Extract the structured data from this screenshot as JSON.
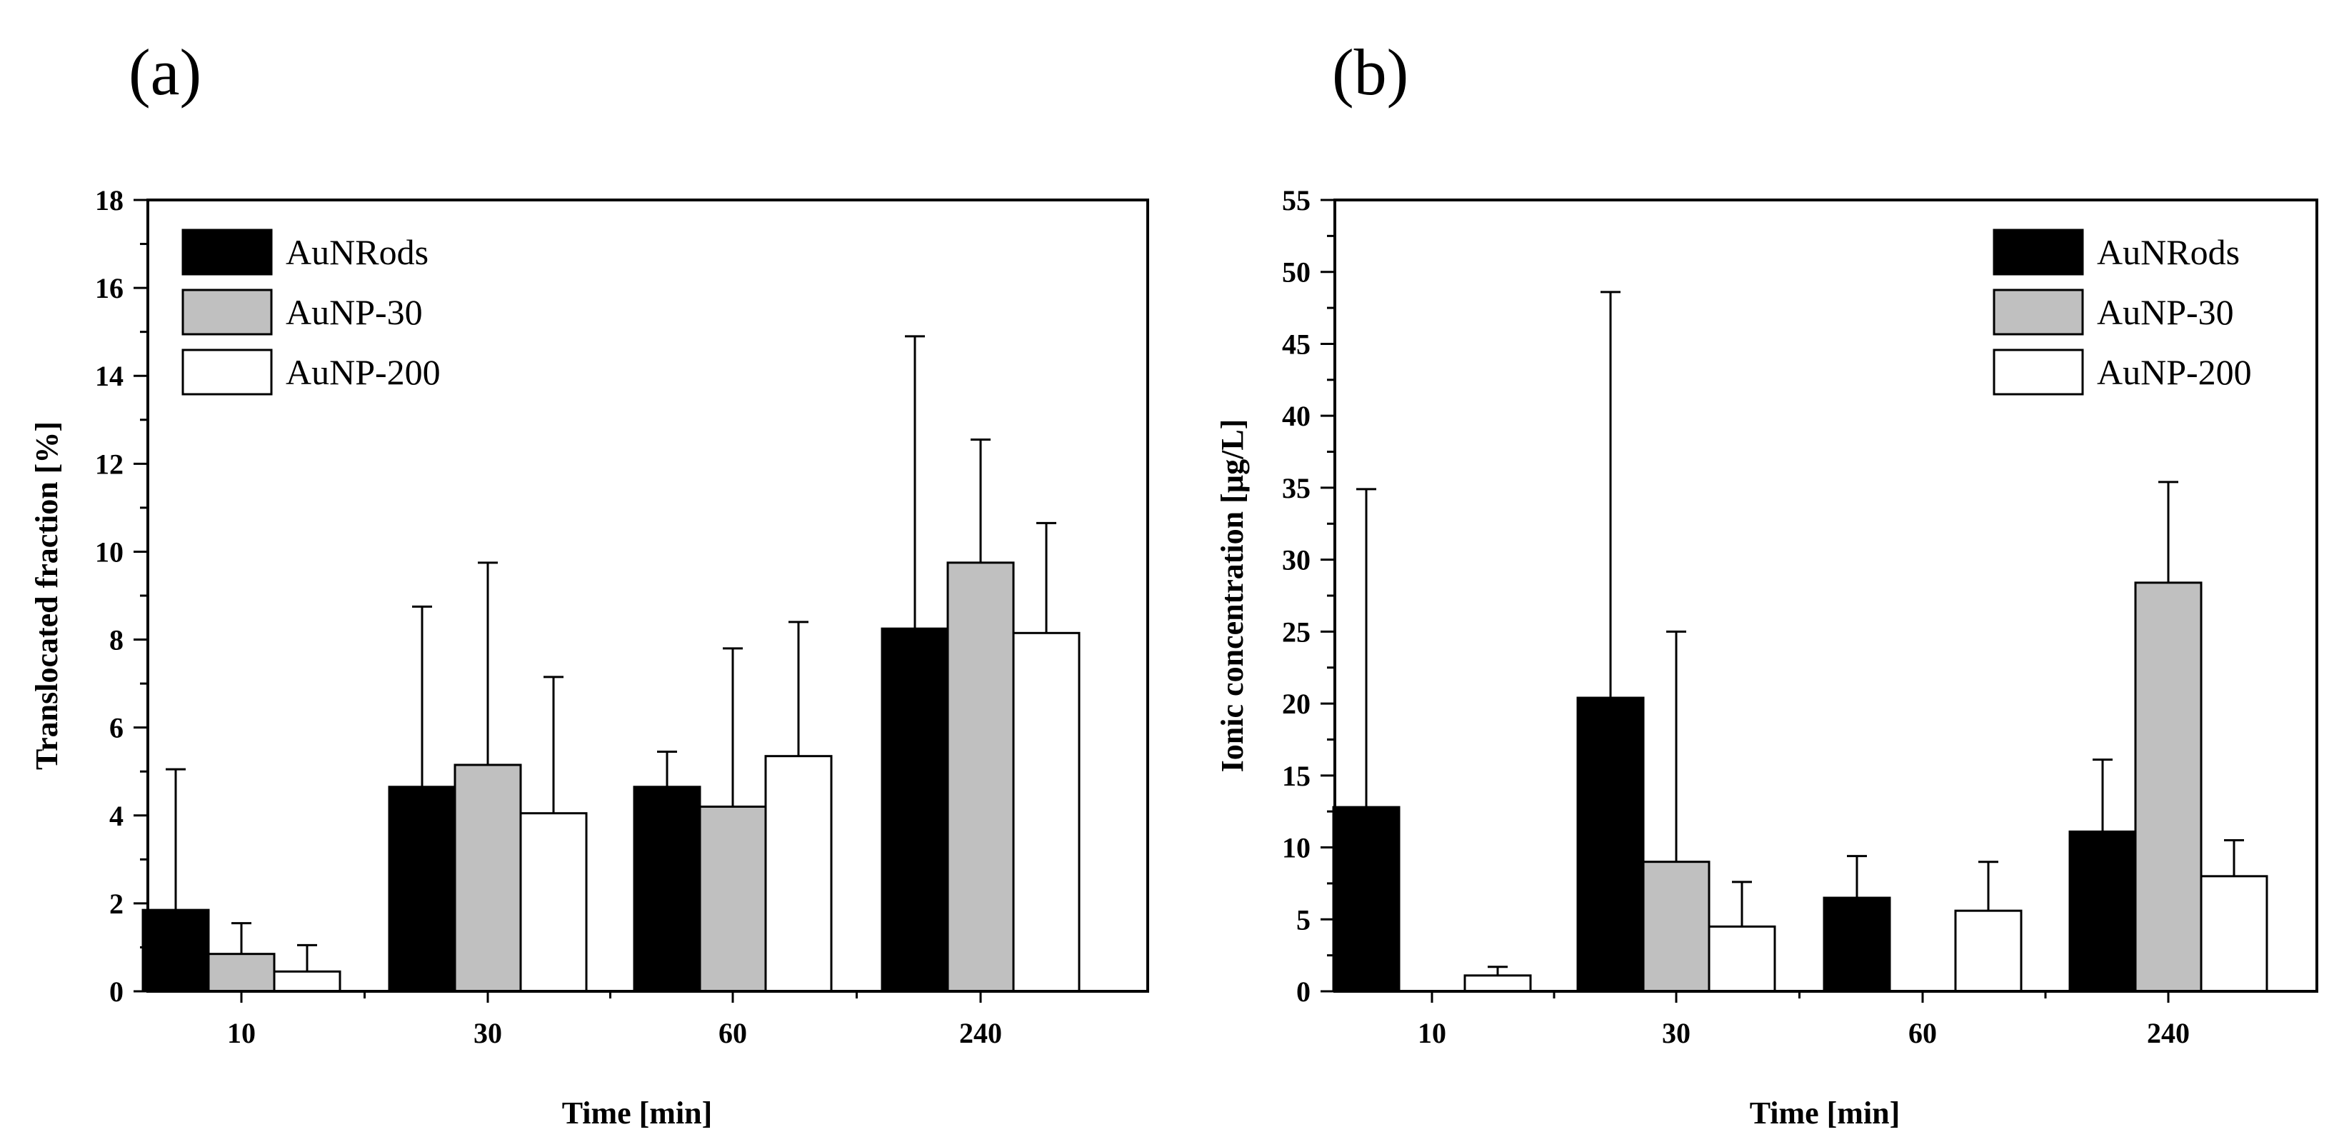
{
  "chart_data": [
    {
      "type": "bar",
      "panel_label": "(a)",
      "title": "",
      "xlabel": "Time  [min]",
      "ylabel": "Translocated fraction [%]",
      "categories": [
        "10",
        "30",
        "60",
        "240"
      ],
      "ylim": [
        0,
        18
      ],
      "yticks": [
        0,
        2,
        4,
        6,
        8,
        10,
        12,
        14,
        16,
        18
      ],
      "ytick_labels": [
        "0",
        "2",
        "4",
        "6",
        "8",
        "10",
        "12",
        "14",
        "16",
        "18"
      ],
      "legend_position": "top-left",
      "series": [
        {
          "name": "AuNRods",
          "color": "#000000",
          "values": [
            1.85,
            4.65,
            4.65,
            8.25
          ],
          "errors": [
            3.2,
            4.1,
            0.8,
            6.65
          ]
        },
        {
          "name": "AuNP-30",
          "color": "#c0c0c0",
          "values": [
            0.85,
            5.15,
            4.2,
            9.75
          ],
          "errors": [
            0.7,
            4.6,
            3.6,
            2.8
          ]
        },
        {
          "name": "AuNP-200",
          "color": "#ffffff",
          "values": [
            0.45,
            4.05,
            5.35,
            8.15
          ],
          "errors": [
            0.6,
            3.1,
            3.05,
            2.5
          ]
        }
      ]
    },
    {
      "type": "bar",
      "panel_label": "(b)",
      "title": "",
      "xlabel": "Time [min]",
      "ylabel": "Ionic concentration [µg/L]",
      "categories": [
        "10",
        "30",
        "60",
        "240"
      ],
      "ylim": [
        0,
        55
      ],
      "yticks": [
        0,
        5,
        10,
        15,
        20,
        25,
        30,
        35,
        40,
        45,
        50,
        55
      ],
      "ytick_labels": [
        "0",
        "5",
        "10",
        "15",
        "20",
        "25",
        "30",
        "35",
        "40",
        "45",
        "50",
        "55"
      ],
      "legend_position": "top-right",
      "series": [
        {
          "name": "AuNRods",
          "color": "#000000",
          "values": [
            12.8,
            20.4,
            6.5,
            11.1
          ],
          "errors": [
            22.1,
            28.2,
            2.9,
            5.0
          ]
        },
        {
          "name": "AuNP-30",
          "color": "#c0c0c0",
          "values": [
            0,
            9.0,
            0,
            28.4
          ],
          "errors": [
            0,
            16.0,
            0,
            7.0
          ]
        },
        {
          "name": "AuNP-200",
          "color": "#ffffff",
          "values": [
            1.1,
            4.5,
            5.6,
            8.0
          ],
          "errors": [
            0.6,
            3.1,
            3.4,
            2.5
          ]
        }
      ]
    }
  ]
}
